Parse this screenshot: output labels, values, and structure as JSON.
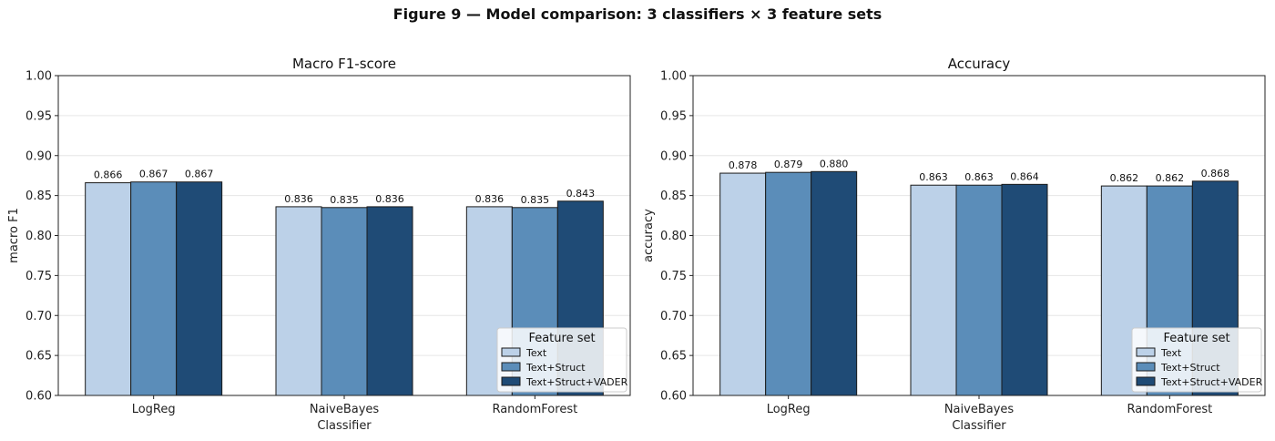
{
  "figure_title": "Figure 9  —  Model comparison: 3 classifiers × 3 feature sets",
  "colors": {
    "Text": "#bcd1e8",
    "Text+Struct": "#5b8db9",
    "Text+Struct+VADER": "#1f4b76"
  },
  "chart_data": [
    {
      "type": "bar",
      "title": "Macro F1-score",
      "xlabel": "Classifier",
      "ylabel": "macro F1",
      "ylim": [
        0.6,
        1.0
      ],
      "yticks": [
        "0.60",
        "0.65",
        "0.70",
        "0.75",
        "0.80",
        "0.85",
        "0.90",
        "0.95",
        "1.00"
      ],
      "categories": [
        "LogReg",
        "NaiveBayes",
        "RandomForest"
      ],
      "grid": "y",
      "legend": {
        "title": "Feature set",
        "placement": "lower-right"
      },
      "series": [
        {
          "name": "Text",
          "values": [
            0.866,
            0.836,
            0.836
          ],
          "labels": [
            "0.866",
            "0.836",
            "0.836"
          ]
        },
        {
          "name": "Text+Struct",
          "values": [
            0.867,
            0.835,
            0.835
          ],
          "labels": [
            "0.867",
            "0.835",
            "0.835"
          ]
        },
        {
          "name": "Text+Struct+VADER",
          "values": [
            0.867,
            0.836,
            0.843
          ],
          "labels": [
            "0.867",
            "0.836",
            "0.843"
          ]
        }
      ]
    },
    {
      "type": "bar",
      "title": "Accuracy",
      "xlabel": "Classifier",
      "ylabel": "accuracy",
      "ylim": [
        0.6,
        1.0
      ],
      "yticks": [
        "0.60",
        "0.65",
        "0.70",
        "0.75",
        "0.80",
        "0.85",
        "0.90",
        "0.95",
        "1.00"
      ],
      "categories": [
        "LogReg",
        "NaiveBayes",
        "RandomForest"
      ],
      "grid": "y",
      "legend": {
        "title": "Feature set",
        "placement": "lower-right"
      },
      "series": [
        {
          "name": "Text",
          "values": [
            0.878,
            0.863,
            0.862
          ],
          "labels": [
            "0.878",
            "0.863",
            "0.862"
          ]
        },
        {
          "name": "Text+Struct",
          "values": [
            0.879,
            0.863,
            0.862
          ],
          "labels": [
            "0.879",
            "0.863",
            "0.862"
          ]
        },
        {
          "name": "Text+Struct+VADER",
          "values": [
            0.88,
            0.864,
            0.868
          ],
          "labels": [
            "0.880",
            "0.864",
            "0.868"
          ]
        }
      ]
    }
  ]
}
